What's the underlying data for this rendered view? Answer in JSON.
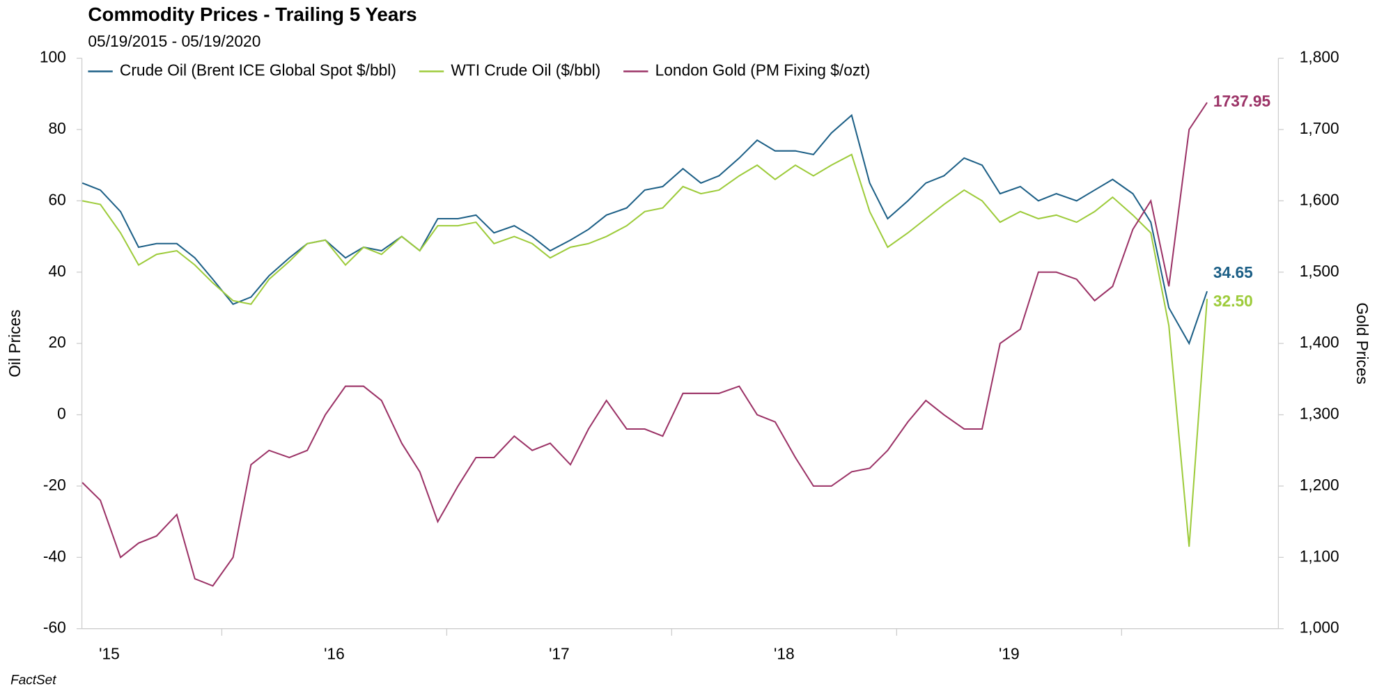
{
  "chart_data": {
    "type": "line",
    "title": "Commodity Prices - Trailing 5 Years",
    "subtitle": "05/19/2015 - 05/19/2020",
    "y_label": "Oil Prices",
    "y2_label": "Gold Prices",
    "source": "FactSet",
    "legend": "top-left",
    "x": [
      2015.38,
      2015.46,
      2015.55,
      2015.63,
      2015.71,
      2015.8,
      2015.88,
      2015.96,
      2016.05,
      2016.13,
      2016.21,
      2016.3,
      2016.38,
      2016.46,
      2016.55,
      2016.63,
      2016.71,
      2016.8,
      2016.88,
      2016.96,
      2017.05,
      2017.13,
      2017.21,
      2017.3,
      2017.38,
      2017.46,
      2017.55,
      2017.63,
      2017.71,
      2017.8,
      2017.88,
      2017.96,
      2018.05,
      2018.13,
      2018.21,
      2018.3,
      2018.38,
      2018.46,
      2018.55,
      2018.63,
      2018.71,
      2018.8,
      2018.88,
      2018.96,
      2019.05,
      2019.13,
      2019.21,
      2019.3,
      2019.38,
      2019.46,
      2019.55,
      2019.63,
      2019.71,
      2019.8,
      2019.88,
      2019.96,
      2020.05,
      2020.13,
      2020.21,
      2020.3,
      2020.38
    ],
    "xlim": [
      2015.378,
      2020.697
    ],
    "xticks": [
      {
        "value": 2015.5,
        "label": "'15"
      },
      {
        "value": 2016.5,
        "label": "'16"
      },
      {
        "value": 2017.5,
        "label": "'17"
      },
      {
        "value": 2018.5,
        "label": "'18"
      },
      {
        "value": 2019.5,
        "label": "'19"
      }
    ],
    "ylim": [
      -60,
      100
    ],
    "yticks": [
      -60,
      -40,
      -20,
      0,
      20,
      40,
      60,
      80,
      100
    ],
    "y2lim": [
      1000,
      1800
    ],
    "y2ticks": [
      {
        "value": 1000,
        "label": "1,000"
      },
      {
        "value": 1100,
        "label": "1,100"
      },
      {
        "value": 1200,
        "label": "1,200"
      },
      {
        "value": 1300,
        "label": "1,300"
      },
      {
        "value": 1400,
        "label": "1,400"
      },
      {
        "value": 1500,
        "label": "1,500"
      },
      {
        "value": 1600,
        "label": "1,600"
      },
      {
        "value": 1700,
        "label": "1,700"
      },
      {
        "value": 1800,
        "label": "1,800"
      }
    ],
    "series": [
      {
        "name": "Crude Oil (Brent ICE Global Spot $/bbl)",
        "color": "#1c5f86",
        "end_label": "34.65",
        "values": [
          65,
          63,
          57,
          47,
          48,
          48,
          44,
          38,
          31,
          33,
          39,
          44,
          48,
          49,
          44,
          47,
          46,
          50,
          46,
          55,
          55,
          56,
          51,
          53,
          50,
          46,
          49,
          52,
          56,
          58,
          63,
          64,
          69,
          65,
          67,
          72,
          77,
          74,
          74,
          73,
          79,
          84,
          65,
          55,
          60,
          65,
          67,
          72,
          70,
          62,
          64,
          60,
          62,
          60,
          63,
          66,
          62,
          54,
          30,
          20,
          34.65
        ]
      },
      {
        "name": "WTI Crude Oil ($/bbl)",
        "color": "#9dcb3a",
        "end_label": "32.50",
        "values": [
          60,
          59,
          51,
          42,
          45,
          46,
          42,
          37,
          32,
          31,
          38,
          43,
          48,
          49,
          42,
          47,
          45,
          50,
          46,
          53,
          53,
          54,
          48,
          50,
          48,
          44,
          47,
          48,
          50,
          53,
          57,
          58,
          64,
          62,
          63,
          67,
          70,
          66,
          70,
          67,
          70,
          73,
          57,
          47,
          51,
          55,
          59,
          63,
          60,
          54,
          57,
          55,
          56,
          54,
          57,
          61,
          56,
          51,
          25,
          -37,
          32.5
        ]
      },
      {
        "name": "London Gold (PM Fixing $/ozt)",
        "color": "#9b3266",
        "axis": "y2",
        "end_label": "1737.95",
        "values": [
          1205,
          1180,
          1100,
          1120,
          1130,
          1160,
          1070,
          1060,
          1100,
          1230,
          1250,
          1240,
          1250,
          1300,
          1340,
          1340,
          1320,
          1260,
          1220,
          1150,
          1200,
          1240,
          1240,
          1270,
          1250,
          1260,
          1230,
          1280,
          1320,
          1280,
          1280,
          1270,
          1330,
          1330,
          1330,
          1340,
          1300,
          1290,
          1240,
          1200,
          1200,
          1220,
          1225,
          1250,
          1290,
          1320,
          1300,
          1280,
          1280,
          1400,
          1420,
          1500,
          1500,
          1490,
          1460,
          1480,
          1560,
          1600,
          1480,
          1700,
          1737.95
        ]
      }
    ]
  }
}
